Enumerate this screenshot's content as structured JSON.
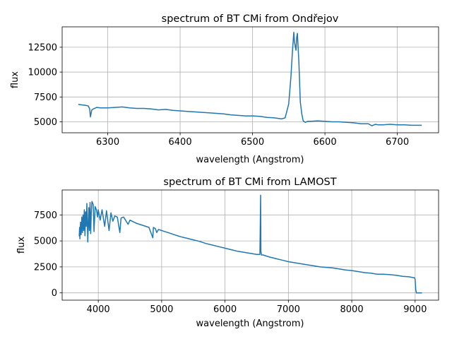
{
  "chart_data": [
    {
      "type": "line",
      "title": "spectrum of BT CMi from Ondřejov",
      "xlabel": "wavelength (Angstrom)",
      "ylabel": "flux",
      "xlim": [
        6237,
        6757
      ],
      "ylim": [
        3900,
        14550
      ],
      "xticks": [
        6300,
        6400,
        6500,
        6600,
        6700
      ],
      "yticks": [
        5000,
        7500,
        10000,
        12500
      ],
      "xtick_labels": [
        "6300",
        "6400",
        "6500",
        "6600",
        "6700"
      ],
      "ytick_labels": [
        "5000",
        "7500",
        "10000",
        "12500"
      ],
      "grid": true,
      "color": "#1f77b4",
      "series": [
        {
          "x": [
            6260,
            6265,
            6270,
            6273,
            6275,
            6276,
            6278,
            6280,
            6285,
            6290,
            6300,
            6310,
            6320,
            6330,
            6340,
            6350,
            6360,
            6370,
            6380,
            6390,
            6400,
            6410,
            6420,
            6430,
            6440,
            6450,
            6460,
            6470,
            6480,
            6490,
            6500,
            6510,
            6520,
            6530,
            6540,
            6545,
            6550,
            6553,
            6555,
            6557,
            6558,
            6560,
            6561,
            6562,
            6563,
            6564,
            6565,
            6566,
            6568,
            6570,
            6573,
            6576,
            6580,
            6590,
            6600,
            6610,
            6620,
            6630,
            6640,
            6650,
            6660,
            6665,
            6668,
            6670,
            6673,
            6680,
            6690,
            6700,
            6710,
            6720,
            6733
          ],
          "y": [
            6750,
            6700,
            6650,
            6600,
            6300,
            5500,
            6200,
            6300,
            6450,
            6400,
            6400,
            6450,
            6500,
            6400,
            6350,
            6350,
            6300,
            6200,
            6250,
            6150,
            6100,
            6050,
            6000,
            5950,
            5900,
            5850,
            5800,
            5700,
            5650,
            5600,
            5600,
            5550,
            5450,
            5400,
            5300,
            5400,
            6800,
            9500,
            12000,
            14000,
            13000,
            12200,
            13500,
            13900,
            12500,
            11000,
            9000,
            7000,
            5800,
            5100,
            4950,
            5050,
            5050,
            5100,
            5050,
            5000,
            5000,
            4950,
            4900,
            4800,
            4800,
            4600,
            4700,
            4750,
            4700,
            4700,
            4750,
            4700,
            4700,
            4650,
            4650
          ]
        }
      ]
    },
    {
      "type": "line",
      "title": "spectrum of BT CMi from LAMOST",
      "xlabel": "wavelength (Angstrom)",
      "ylabel": "flux",
      "xlim": [
        3430,
        9370
      ],
      "ylim": [
        -700,
        9900
      ],
      "xticks": [
        4000,
        5000,
        6000,
        7000,
        8000,
        9000
      ],
      "yticks": [
        0,
        2500,
        5000,
        7500
      ],
      "xtick_labels": [
        "4000",
        "5000",
        "6000",
        "7000",
        "8000",
        "9000"
      ],
      "ytick_labels": [
        "0",
        "2500",
        "5000",
        "7500"
      ],
      "grid": true,
      "color": "#1f77b4",
      "series": [
        {
          "x": [
            3700,
            3705,
            3710,
            3720,
            3730,
            3740,
            3750,
            3760,
            3770,
            3780,
            3790,
            3800,
            3810,
            3820,
            3835,
            3850,
            3860,
            3870,
            3880,
            3889,
            3900,
            3920,
            3933,
            3950,
            3970,
            3990,
            4000,
            4030,
            4060,
            4101,
            4130,
            4170,
            4200,
            4230,
            4260,
            4300,
            4340,
            4360,
            4400,
            4471,
            4500,
            4600,
            4700,
            4800,
            4861,
            4870,
            4900,
            4922,
            4950,
            5000,
            5100,
            5200,
            5300,
            5400,
            5500,
            5600,
            5700,
            5800,
            5900,
            6000,
            6100,
            6200,
            6300,
            6400,
            6500,
            6550,
            6555,
            6562,
            6566,
            6575,
            6600,
            6700,
            6800,
            6900,
            7000,
            7100,
            7200,
            7300,
            7400,
            7500,
            7600,
            7700,
            7800,
            7900,
            8000,
            8100,
            8200,
            8300,
            8400,
            8500,
            8600,
            8700,
            8800,
            8900,
            8990,
            9000,
            9010,
            9020,
            9050,
            9100
          ],
          "y": [
            5500,
            6300,
            5200,
            6800,
            5600,
            7300,
            5800,
            7500,
            6000,
            8000,
            5500,
            7800,
            6400,
            8600,
            4900,
            8200,
            6000,
            8700,
            5700,
            7600,
            8800,
            8500,
            5900,
            8300,
            8000,
            7300,
            8000,
            7000,
            8000,
            6400,
            7900,
            6000,
            7700,
            6900,
            7400,
            7300,
            5800,
            7200,
            7300,
            6600,
            7000,
            6700,
            6500,
            6300,
            5300,
            6300,
            6200,
            5800,
            6100,
            6000,
            5800,
            5600,
            5400,
            5250,
            5100,
            4950,
            4750,
            4600,
            4450,
            4300,
            4150,
            4000,
            3900,
            3800,
            3700,
            3700,
            5800,
            9400,
            4000,
            3650,
            3650,
            3450,
            3300,
            3150,
            3000,
            2900,
            2800,
            2700,
            2600,
            2500,
            2450,
            2400,
            2300,
            2200,
            2150,
            2050,
            1950,
            1900,
            1800,
            1800,
            1750,
            1700,
            1600,
            1550,
            1450,
            1300,
            300,
            0,
            0,
            0
          ]
        }
      ]
    }
  ]
}
